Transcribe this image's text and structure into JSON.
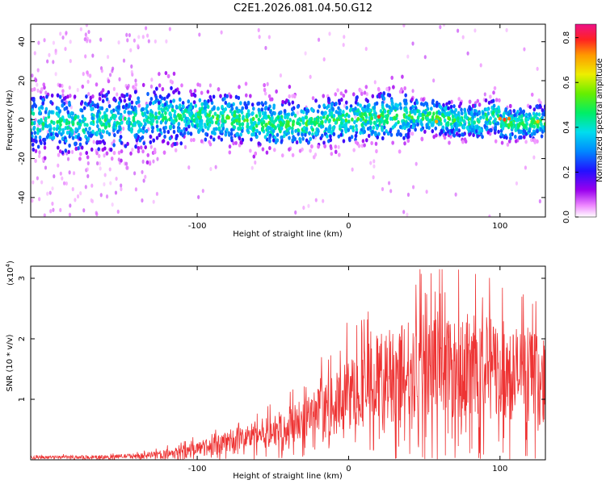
{
  "title": "C2E1.2026.081.04.50.G12",
  "chart_data": [
    {
      "type": "heatmap",
      "xlabel": "Height of straight line (km)",
      "ylabel": "Frequency (Hz)",
      "xlim": [
        -210,
        130
      ],
      "ylim": [
        -50,
        49
      ],
      "xticks": [
        -100,
        0,
        100
      ],
      "xtick_labels": [
        "-100",
        "0",
        "100"
      ],
      "yticks": [
        -40,
        -20,
        0,
        20,
        40
      ],
      "ytick_labels": [
        "-40",
        "-20",
        "0",
        "20",
        "40"
      ],
      "colorbar": {
        "label": "Normalized spectral amplitude",
        "range": [
          0.0,
          0.86
        ],
        "ticks": [
          0.0,
          0.2,
          0.4,
          0.6,
          0.8
        ],
        "tick_labels": [
          "0.0",
          "0.2",
          "0.4",
          "0.6",
          "0.8"
        ]
      }
    },
    {
      "type": "line",
      "xlabel": "Height of straight line (km)",
      "ylabel": "SNR (10 * v/v)",
      "y_multiplier": "(x10",
      "y_multiplier_exp": "4",
      "y_multiplier_close": ")",
      "xlim": [
        -210,
        130
      ],
      "ylim": [
        0,
        3.2
      ],
      "xticks": [
        -100,
        0,
        100
      ],
      "xtick_labels": [
        "-100",
        "0",
        "100"
      ],
      "yticks": [
        1,
        2,
        3
      ],
      "ytick_labels": [
        "1",
        "2",
        "3"
      ],
      "color": "#ee3333",
      "envelope_x": [
        -210,
        -160,
        -130,
        -110,
        -90,
        -70,
        -50,
        -30,
        -20,
        -10,
        0,
        20,
        40,
        60,
        80,
        100,
        115,
        130
      ],
      "envelope_y": [
        0.05,
        0.06,
        0.1,
        0.18,
        0.3,
        0.45,
        0.6,
        0.8,
        0.95,
        1.1,
        1.35,
        1.7,
        1.9,
        2.05,
        1.95,
        1.85,
        1.75,
        1.6
      ]
    }
  ]
}
